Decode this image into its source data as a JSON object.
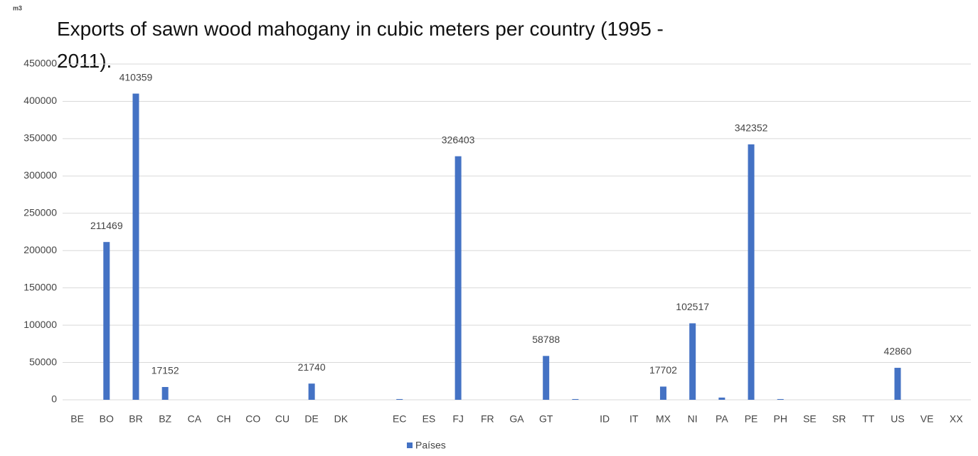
{
  "chart_data": {
    "type": "bar",
    "title": "Exports of sawn wood mahogany in cubic meters per country (1995 - 2011).",
    "unit_label": "m3",
    "categories": [
      "BE",
      "BO",
      "BR",
      "BZ",
      "CA",
      "CH",
      "CO",
      "CU",
      "DE",
      "DK",
      null,
      "EC",
      "ES",
      "FJ",
      "FR",
      "GA",
      "GT",
      null,
      "ID",
      "IT",
      "MX",
      "NI",
      "PA",
      "PE",
      "PH",
      "SE",
      "SR",
      "TT",
      "US",
      "VE",
      "XX"
    ],
    "series": [
      {
        "name": "Países",
        "color": "#4472c4",
        "values": [
          0,
          211469,
          410359,
          17152,
          0,
          0,
          0,
          0,
          21740,
          0,
          0,
          1000,
          0,
          326403,
          0,
          0,
          58788,
          1000,
          0,
          0,
          17702,
          102517,
          3000,
          342352,
          1000,
          0,
          0,
          0,
          42860,
          0,
          0
        ],
        "value_labels": [
          null,
          "211469",
          "410359",
          "17152",
          null,
          null,
          null,
          null,
          "21740",
          null,
          null,
          null,
          null,
          "326403",
          null,
          null,
          "58788",
          null,
          null,
          null,
          "17702",
          "102517",
          null,
          "342352",
          null,
          null,
          null,
          null,
          "42860",
          null,
          null
        ]
      }
    ],
    "ylim": [
      0,
      450000
    ],
    "yticks": [
      0,
      50000,
      100000,
      150000,
      200000,
      250000,
      300000,
      350000,
      400000,
      450000
    ],
    "grid": true,
    "legend": "bottom"
  }
}
